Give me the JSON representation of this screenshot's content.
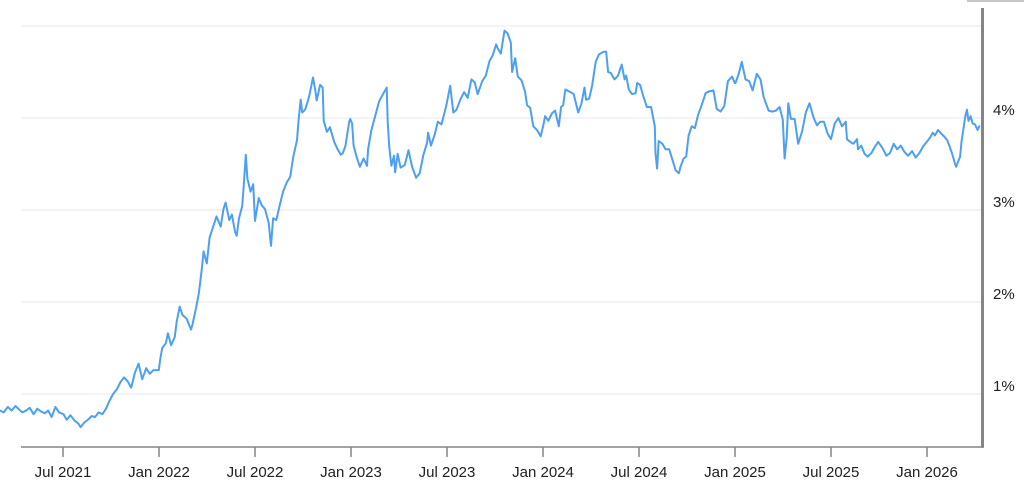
{
  "chart_data": {
    "type": "line",
    "description": "Interest-rate style time-series line chart (yield in percent), Mar 2021 through Apr 2026",
    "line_color": "#4d9ff0",
    "grid_color": "#e9eaec",
    "axis_color": "#80868b",
    "label_color": "#202124",
    "top_edge_color": "#c6c8cb",
    "grid": true,
    "legend_position": "none",
    "xlabel": "",
    "ylabel": "",
    "ylim_percent": [
      0.5,
      5.0
    ],
    "y_gridline_values": [
      1,
      2,
      3,
      4,
      5
    ],
    "y_ticks": [
      {
        "label": "4%",
        "value": 4
      },
      {
        "label": "3%",
        "value": 3
      },
      {
        "label": "2%",
        "value": 2
      },
      {
        "label": "1%",
        "value": 1
      }
    ],
    "x_ticks": [
      {
        "label": "Jul 2021",
        "date": "2021-07-01"
      },
      {
        "label": "Jan 2022",
        "date": "2022-01-01"
      },
      {
        "label": "Jul 2022",
        "date": "2022-07-01"
      },
      {
        "label": "Jan 2023",
        "date": "2023-01-01"
      },
      {
        "label": "Jul 2023",
        "date": "2023-07-01"
      },
      {
        "label": "Jan 2024",
        "date": "2024-01-01"
      },
      {
        "label": "Jul 2024",
        "date": "2024-07-01"
      },
      {
        "label": "Jan 2025",
        "date": "2025-01-01"
      },
      {
        "label": "Jul 2025",
        "date": "2025-07-01"
      },
      {
        "label": "Jan 2026",
        "date": "2026-01-01"
      }
    ],
    "points": [
      [
        "2021-03-03",
        0.82
      ],
      [
        "2021-03-10",
        0.8
      ],
      [
        "2021-03-18",
        0.86
      ],
      [
        "2021-03-25",
        0.82
      ],
      [
        "2021-04-02",
        0.87
      ],
      [
        "2021-04-09",
        0.83
      ],
      [
        "2021-04-15",
        0.8
      ],
      [
        "2021-04-22",
        0.82
      ],
      [
        "2021-04-29",
        0.85
      ],
      [
        "2021-05-06",
        0.78
      ],
      [
        "2021-05-13",
        0.84
      ],
      [
        "2021-05-20",
        0.81
      ],
      [
        "2021-05-27",
        0.79
      ],
      [
        "2021-06-03",
        0.82
      ],
      [
        "2021-06-10",
        0.75
      ],
      [
        "2021-06-17",
        0.86
      ],
      [
        "2021-06-24",
        0.8
      ],
      [
        "2021-07-02",
        0.78
      ],
      [
        "2021-07-08",
        0.72
      ],
      [
        "2021-07-15",
        0.77
      ],
      [
        "2021-07-23",
        0.71
      ],
      [
        "2021-07-30",
        0.68
      ],
      [
        "2021-08-04",
        0.64
      ],
      [
        "2021-08-11",
        0.69
      ],
      [
        "2021-08-18",
        0.72
      ],
      [
        "2021-08-25",
        0.76
      ],
      [
        "2021-09-01",
        0.75
      ],
      [
        "2021-09-08",
        0.8
      ],
      [
        "2021-09-15",
        0.78
      ],
      [
        "2021-09-22",
        0.84
      ],
      [
        "2021-09-28",
        0.92
      ],
      [
        "2021-10-05",
        1.0
      ],
      [
        "2021-10-12",
        1.05
      ],
      [
        "2021-10-19",
        1.13
      ],
      [
        "2021-10-26",
        1.18
      ],
      [
        "2021-11-02",
        1.14
      ],
      [
        "2021-11-09",
        1.07
      ],
      [
        "2021-11-16",
        1.23
      ],
      [
        "2021-11-23",
        1.33
      ],
      [
        "2021-11-30",
        1.16
      ],
      [
        "2021-12-07",
        1.28
      ],
      [
        "2021-12-14",
        1.22
      ],
      [
        "2021-12-21",
        1.26
      ],
      [
        "2021-12-31",
        1.26
      ],
      [
        "2022-01-03",
        1.37
      ],
      [
        "2022-01-07",
        1.5
      ],
      [
        "2022-01-14",
        1.55
      ],
      [
        "2022-01-18",
        1.66
      ],
      [
        "2022-01-24",
        1.53
      ],
      [
        "2022-01-31",
        1.62
      ],
      [
        "2022-02-04",
        1.78
      ],
      [
        "2022-02-10",
        1.95
      ],
      [
        "2022-02-15",
        1.86
      ],
      [
        "2022-02-23",
        1.82
      ],
      [
        "2022-03-01",
        1.7
      ],
      [
        "2022-03-04",
        1.76
      ],
      [
        "2022-03-11",
        1.95
      ],
      [
        "2022-03-16",
        2.1
      ],
      [
        "2022-03-21",
        2.33
      ],
      [
        "2022-03-25",
        2.55
      ],
      [
        "2022-03-31",
        2.42
      ],
      [
        "2022-04-06",
        2.7
      ],
      [
        "2022-04-11",
        2.79
      ],
      [
        "2022-04-19",
        2.93
      ],
      [
        "2022-04-27",
        2.82
      ],
      [
        "2022-05-02",
        3.01
      ],
      [
        "2022-05-06",
        3.08
      ],
      [
        "2022-05-13",
        2.89
      ],
      [
        "2022-05-18",
        2.95
      ],
      [
        "2022-05-24",
        2.76
      ],
      [
        "2022-05-27",
        2.72
      ],
      [
        "2022-06-01",
        2.91
      ],
      [
        "2022-06-07",
        3.04
      ],
      [
        "2022-06-10",
        3.26
      ],
      [
        "2022-06-14",
        3.6
      ],
      [
        "2022-06-17",
        3.34
      ],
      [
        "2022-06-23",
        3.2
      ],
      [
        "2022-06-28",
        3.28
      ],
      [
        "2022-07-01",
        2.88
      ],
      [
        "2022-07-08",
        3.13
      ],
      [
        "2022-07-14",
        3.05
      ],
      [
        "2022-07-20",
        3.01
      ],
      [
        "2022-07-27",
        2.86
      ],
      [
        "2022-08-01",
        2.61
      ],
      [
        "2022-08-05",
        2.91
      ],
      [
        "2022-08-11",
        2.89
      ],
      [
        "2022-08-18",
        3.06
      ],
      [
        "2022-08-24",
        3.2
      ],
      [
        "2022-08-31",
        3.3
      ],
      [
        "2022-09-07",
        3.36
      ],
      [
        "2022-09-13",
        3.58
      ],
      [
        "2022-09-20",
        3.76
      ],
      [
        "2022-09-23",
        3.98
      ],
      [
        "2022-09-27",
        4.2
      ],
      [
        "2022-09-30",
        4.06
      ],
      [
        "2022-10-05",
        4.09
      ],
      [
        "2022-10-11",
        4.2
      ],
      [
        "2022-10-14",
        4.27
      ],
      [
        "2022-10-20",
        4.44
      ],
      [
        "2022-10-25",
        4.28
      ],
      [
        "2022-10-27",
        4.19
      ],
      [
        "2022-11-03",
        4.36
      ],
      [
        "2022-11-08",
        4.33
      ],
      [
        "2022-11-10",
        3.97
      ],
      [
        "2022-11-16",
        3.85
      ],
      [
        "2022-11-22",
        3.9
      ],
      [
        "2022-11-30",
        3.74
      ],
      [
        "2022-12-06",
        3.66
      ],
      [
        "2022-12-12",
        3.6
      ],
      [
        "2022-12-16",
        3.62
      ],
      [
        "2022-12-21",
        3.7
      ],
      [
        "2022-12-28",
        3.96
      ],
      [
        "2022-12-30",
        3.99
      ],
      [
        "2023-01-03",
        3.94
      ],
      [
        "2023-01-06",
        3.7
      ],
      [
        "2023-01-12",
        3.57
      ],
      [
        "2023-01-18",
        3.47
      ],
      [
        "2023-01-25",
        3.56
      ],
      [
        "2023-02-01",
        3.48
      ],
      [
        "2023-02-03",
        3.66
      ],
      [
        "2023-02-09",
        3.86
      ],
      [
        "2023-02-17",
        4.03
      ],
      [
        "2023-02-24",
        4.18
      ],
      [
        "2023-03-02",
        4.27
      ],
      [
        "2023-03-08",
        4.33
      ],
      [
        "2023-03-10",
        3.96
      ],
      [
        "2023-03-13",
        3.68
      ],
      [
        "2023-03-17",
        3.48
      ],
      [
        "2023-03-22",
        3.59
      ],
      [
        "2023-03-24",
        3.41
      ],
      [
        "2023-03-29",
        3.61
      ],
      [
        "2023-04-04",
        3.46
      ],
      [
        "2023-04-12",
        3.49
      ],
      [
        "2023-04-19",
        3.65
      ],
      [
        "2023-04-26",
        3.47
      ],
      [
        "2023-05-03",
        3.35
      ],
      [
        "2023-05-10",
        3.4
      ],
      [
        "2023-05-17",
        3.6
      ],
      [
        "2023-05-24",
        3.73
      ],
      [
        "2023-05-26",
        3.84
      ],
      [
        "2023-06-01",
        3.7
      ],
      [
        "2023-06-08",
        3.82
      ],
      [
        "2023-06-14",
        3.96
      ],
      [
        "2023-06-21",
        3.93
      ],
      [
        "2023-06-30",
        4.13
      ],
      [
        "2023-07-07",
        4.35
      ],
      [
        "2023-07-13",
        4.06
      ],
      [
        "2023-07-19",
        4.09
      ],
      [
        "2023-07-27",
        4.21
      ],
      [
        "2023-08-03",
        4.28
      ],
      [
        "2023-08-10",
        4.22
      ],
      [
        "2023-08-17",
        4.42
      ],
      [
        "2023-08-23",
        4.39
      ],
      [
        "2023-08-29",
        4.26
      ],
      [
        "2023-09-01",
        4.3
      ],
      [
        "2023-09-07",
        4.4
      ],
      [
        "2023-09-14",
        4.46
      ],
      [
        "2023-09-21",
        4.62
      ],
      [
        "2023-09-27",
        4.68
      ],
      [
        "2023-10-03",
        4.8
      ],
      [
        "2023-10-06",
        4.76
      ],
      [
        "2023-10-12",
        4.7
      ],
      [
        "2023-10-19",
        4.95
      ],
      [
        "2023-10-25",
        4.92
      ],
      [
        "2023-10-31",
        4.82
      ],
      [
        "2023-11-03",
        4.5
      ],
      [
        "2023-11-09",
        4.65
      ],
      [
        "2023-11-14",
        4.45
      ],
      [
        "2023-11-21",
        4.41
      ],
      [
        "2023-11-28",
        4.28
      ],
      [
        "2023-12-01",
        4.14
      ],
      [
        "2023-12-07",
        4.11
      ],
      [
        "2023-12-13",
        3.91
      ],
      [
        "2023-12-20",
        3.87
      ],
      [
        "2023-12-27",
        3.8
      ],
      [
        "2024-01-02",
        3.93
      ],
      [
        "2024-01-05",
        4.02
      ],
      [
        "2024-01-11",
        3.97
      ],
      [
        "2024-01-18",
        4.05
      ],
      [
        "2024-01-24",
        4.08
      ],
      [
        "2024-01-31",
        3.91
      ],
      [
        "2024-02-05",
        4.12
      ],
      [
        "2024-02-09",
        4.14
      ],
      [
        "2024-02-13",
        4.31
      ],
      [
        "2024-02-23",
        4.28
      ],
      [
        "2024-02-29",
        4.26
      ],
      [
        "2024-03-07",
        4.06
      ],
      [
        "2024-03-13",
        4.15
      ],
      [
        "2024-03-19",
        4.33
      ],
      [
        "2024-03-22",
        4.2
      ],
      [
        "2024-03-28",
        4.21
      ],
      [
        "2024-04-03",
        4.35
      ],
      [
        "2024-04-10",
        4.61
      ],
      [
        "2024-04-16",
        4.69
      ],
      [
        "2024-04-25",
        4.72
      ],
      [
        "2024-04-30",
        4.72
      ],
      [
        "2024-05-03",
        4.5
      ],
      [
        "2024-05-08",
        4.49
      ],
      [
        "2024-05-15",
        4.42
      ],
      [
        "2024-05-22",
        4.46
      ],
      [
        "2024-05-29",
        4.58
      ],
      [
        "2024-06-04",
        4.42
      ],
      [
        "2024-06-07",
        4.46
      ],
      [
        "2024-06-12",
        4.31
      ],
      [
        "2024-06-18",
        4.26
      ],
      [
        "2024-06-25",
        4.27
      ],
      [
        "2024-06-28",
        4.38
      ],
      [
        "2024-07-03",
        4.36
      ],
      [
        "2024-07-09",
        4.24
      ],
      [
        "2024-07-16",
        4.12
      ],
      [
        "2024-07-24",
        4.12
      ],
      [
        "2024-07-31",
        3.91
      ],
      [
        "2024-08-02",
        3.62
      ],
      [
        "2024-08-05",
        3.45
      ],
      [
        "2024-08-08",
        3.75
      ],
      [
        "2024-08-15",
        3.72
      ],
      [
        "2024-08-21",
        3.66
      ],
      [
        "2024-08-28",
        3.66
      ],
      [
        "2024-09-04",
        3.54
      ],
      [
        "2024-09-10",
        3.43
      ],
      [
        "2024-09-16",
        3.4
      ],
      [
        "2024-09-19",
        3.47
      ],
      [
        "2024-09-25",
        3.56
      ],
      [
        "2024-09-30",
        3.58
      ],
      [
        "2024-10-04",
        3.81
      ],
      [
        "2024-10-10",
        3.91
      ],
      [
        "2024-10-16",
        3.89
      ],
      [
        "2024-10-22",
        4.03
      ],
      [
        "2024-10-29",
        4.14
      ],
      [
        "2024-11-06",
        4.27
      ],
      [
        "2024-11-13",
        4.29
      ],
      [
        "2024-11-21",
        4.3
      ],
      [
        "2024-11-27",
        4.1
      ],
      [
        "2024-12-04",
        4.07
      ],
      [
        "2024-12-11",
        4.13
      ],
      [
        "2024-12-18",
        4.4
      ],
      [
        "2024-12-26",
        4.45
      ],
      [
        "2024-12-31",
        4.38
      ],
      [
        "2025-01-02",
        4.38
      ],
      [
        "2025-01-08",
        4.48
      ],
      [
        "2025-01-14",
        4.61
      ],
      [
        "2025-01-21",
        4.42
      ],
      [
        "2025-01-28",
        4.4
      ],
      [
        "2025-02-04",
        4.3
      ],
      [
        "2025-02-12",
        4.48
      ],
      [
        "2025-02-19",
        4.42
      ],
      [
        "2025-02-25",
        4.23
      ],
      [
        "2025-03-04",
        4.08
      ],
      [
        "2025-03-11",
        4.07
      ],
      [
        "2025-03-18",
        4.08
      ],
      [
        "2025-03-25",
        4.12
      ],
      [
        "2025-03-31",
        3.98
      ],
      [
        "2025-04-04",
        3.56
      ],
      [
        "2025-04-08",
        3.78
      ],
      [
        "2025-04-11",
        4.16
      ],
      [
        "2025-04-16",
        3.99
      ],
      [
        "2025-04-23",
        3.99
      ],
      [
        "2025-04-30",
        3.72
      ],
      [
        "2025-05-07",
        3.86
      ],
      [
        "2025-05-14",
        4.06
      ],
      [
        "2025-05-21",
        4.16
      ],
      [
        "2025-05-29",
        4.0
      ],
      [
        "2025-06-05",
        3.92
      ],
      [
        "2025-06-11",
        3.96
      ],
      [
        "2025-06-18",
        3.96
      ],
      [
        "2025-06-25",
        3.83
      ],
      [
        "2025-07-01",
        3.77
      ],
      [
        "2025-07-08",
        3.94
      ],
      [
        "2025-07-15",
        4.0
      ],
      [
        "2025-07-22",
        3.91
      ],
      [
        "2025-07-29",
        3.96
      ],
      [
        "2025-08-01",
        3.77
      ],
      [
        "2025-08-07",
        3.74
      ],
      [
        "2025-08-13",
        3.72
      ],
      [
        "2025-08-20",
        3.77
      ],
      [
        "2025-08-22",
        3.66
      ],
      [
        "2025-08-28",
        3.7
      ],
      [
        "2025-09-04",
        3.61
      ],
      [
        "2025-09-10",
        3.58
      ],
      [
        "2025-09-17",
        3.62
      ],
      [
        "2025-09-24",
        3.69
      ],
      [
        "2025-09-30",
        3.74
      ],
      [
        "2025-10-08",
        3.67
      ],
      [
        "2025-10-15",
        3.59
      ],
      [
        "2025-10-22",
        3.62
      ],
      [
        "2025-10-29",
        3.72
      ],
      [
        "2025-11-05",
        3.66
      ],
      [
        "2025-11-12",
        3.7
      ],
      [
        "2025-11-19",
        3.63
      ],
      [
        "2025-11-26",
        3.59
      ],
      [
        "2025-12-03",
        3.64
      ],
      [
        "2025-12-10",
        3.57
      ],
      [
        "2025-12-17",
        3.62
      ],
      [
        "2025-12-24",
        3.69
      ],
      [
        "2025-12-31",
        3.74
      ],
      [
        "2026-01-06",
        3.78
      ],
      [
        "2026-01-12",
        3.84
      ],
      [
        "2026-01-16",
        3.81
      ],
      [
        "2026-01-22",
        3.87
      ],
      [
        "2026-01-28",
        3.83
      ],
      [
        "2026-02-03",
        3.8
      ],
      [
        "2026-02-09",
        3.76
      ],
      [
        "2026-02-13",
        3.7
      ],
      [
        "2026-02-18",
        3.62
      ],
      [
        "2026-02-24",
        3.5
      ],
      [
        "2026-02-26",
        3.47
      ],
      [
        "2026-03-03",
        3.58
      ],
      [
        "2026-03-06",
        3.75
      ],
      [
        "2026-03-10",
        3.9
      ],
      [
        "2026-03-13",
        4.02
      ],
      [
        "2026-03-16",
        4.09
      ],
      [
        "2026-03-19",
        3.97
      ],
      [
        "2026-03-23",
        4.02
      ],
      [
        "2026-03-27",
        3.94
      ],
      [
        "2026-04-01",
        3.93
      ],
      [
        "2026-04-06",
        3.87
      ],
      [
        "2026-04-09",
        3.91
      ]
    ]
  }
}
